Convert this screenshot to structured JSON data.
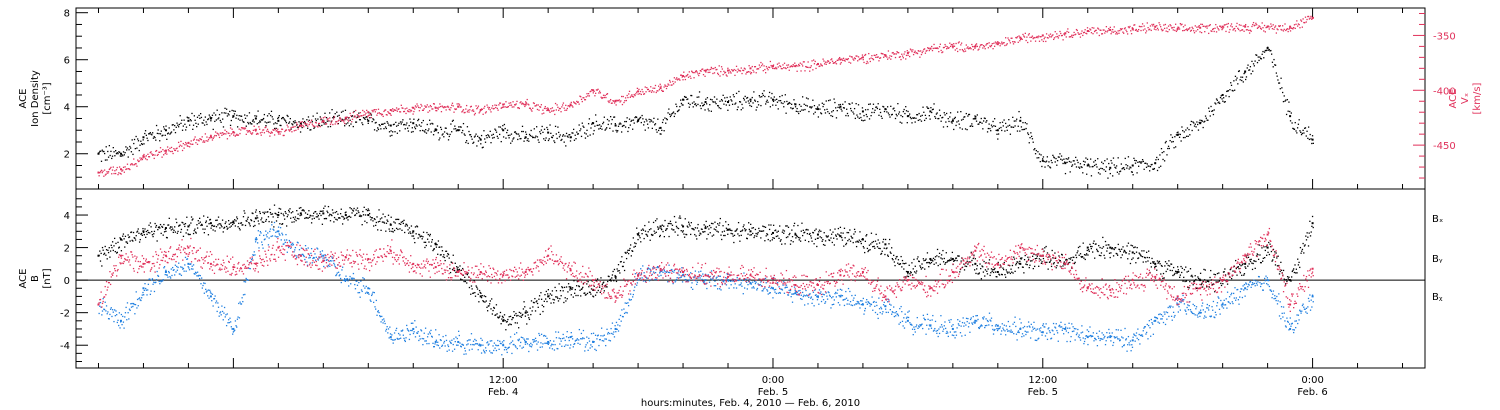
{
  "chart_data": [
    {
      "type": "scatter",
      "panel": "top",
      "ylabel": [
        "ACE",
        "Ion Density",
        "[cm⁻³]"
      ],
      "ylim": [
        0.5,
        8.2
      ],
      "yticks": [
        2,
        4,
        6,
        8
      ],
      "y2label": [
        "ACE",
        "Vₓ",
        "[km/s]"
      ],
      "y2lim": [
        -490,
        -325
      ],
      "y2ticks": [
        -450,
        -400,
        -350
      ],
      "x_unit": "hours since Feb. 4, 2010 00:00",
      "xlim": [
        -7,
        53
      ],
      "series": [
        {
          "name": "Ion Density",
          "color": "#000000",
          "axis": "left",
          "x": [
            -6,
            -5,
            -4,
            -3,
            -2,
            -1,
            0,
            1,
            2,
            3,
            4,
            5,
            6,
            7,
            8,
            9,
            10,
            11,
            12,
            13,
            14,
            15,
            16,
            17,
            18,
            19,
            20,
            21,
            22,
            23,
            24,
            25,
            26,
            27,
            28,
            29,
            30,
            31,
            32,
            33,
            34,
            35,
            36,
            37,
            38,
            39,
            40,
            41,
            42,
            43,
            44,
            45,
            46,
            47,
            48
          ],
          "y": [
            2.0,
            2.0,
            2.7,
            3.0,
            3.4,
            3.5,
            3.6,
            3.5,
            3.4,
            3.3,
            3.4,
            3.5,
            3.4,
            3.2,
            3.3,
            3.0,
            3.0,
            2.6,
            3.0,
            2.7,
            2.9,
            2.7,
            3.3,
            3.2,
            3.4,
            3.1,
            4.3,
            4.2,
            4.2,
            4.3,
            4.3,
            4.1,
            3.9,
            4.0,
            3.8,
            3.9,
            3.6,
            3.8,
            3.4,
            3.5,
            3.0,
            3.4,
            1.7,
            1.6,
            1.5,
            1.4,
            1.5,
            1.6,
            2.8,
            3.3,
            4.5,
            5.5,
            6.5,
            3.6,
            2.6
          ]
        },
        {
          "name": "Vₓ",
          "color": "#e0305a",
          "axis": "right",
          "x": [
            -6,
            -5,
            -4,
            -3,
            -2,
            -1,
            0,
            1,
            2,
            3,
            4,
            5,
            6,
            7,
            8,
            9,
            10,
            11,
            12,
            13,
            14,
            15,
            16,
            17,
            18,
            19,
            20,
            21,
            22,
            23,
            24,
            25,
            26,
            27,
            28,
            29,
            30,
            31,
            32,
            33,
            34,
            35,
            36,
            37,
            38,
            39,
            40,
            41,
            42,
            43,
            44,
            45,
            46,
            47,
            48
          ],
          "y": [
            -475,
            -472,
            -460,
            -455,
            -448,
            -442,
            -438,
            -436,
            -438,
            -432,
            -428,
            -425,
            -420,
            -418,
            -416,
            -416,
            -415,
            -418,
            -413,
            -413,
            -418,
            -413,
            -400,
            -410,
            -401,
            -398,
            -387,
            -382,
            -382,
            -380,
            -378,
            -378,
            -376,
            -372,
            -370,
            -368,
            -366,
            -362,
            -360,
            -360,
            -358,
            -352,
            -350,
            -348,
            -346,
            -345,
            -344,
            -342,
            -344,
            -343,
            -342,
            -342,
            -342,
            -342,
            -334
          ]
        }
      ]
    },
    {
      "type": "scatter",
      "panel": "bottom",
      "ylabel": [
        "ACE",
        "B",
        "[nT]"
      ],
      "ylim": [
        -5.4,
        5.6
      ],
      "yticks": [
        -4,
        -2,
        0,
        2,
        4
      ],
      "xlim": [
        -7,
        53
      ],
      "x_unit": "hours since Feb. 4, 2010 00:00",
      "zero_line": true,
      "xlabel": "hours:minutes, Feb.  4, 2010 — Feb.  6, 2010",
      "xticks": [
        {
          "x": 12,
          "time": "12:00",
          "date": "Feb. 4"
        },
        {
          "x": 24,
          "time": "0:00",
          "date": "Feb. 5"
        },
        {
          "x": 36,
          "time": "12:00",
          "date": "Feb. 5"
        },
        {
          "x": 48,
          "time": "0:00",
          "date": "Feb. 6"
        }
      ],
      "series": [
        {
          "name": "Bₓ",
          "color": "#000000",
          "x": [
            -6,
            -5,
            -4,
            -3,
            -2,
            -1,
            0,
            1,
            2,
            3,
            4,
            5,
            6,
            7,
            8,
            9,
            10,
            11,
            12,
            13,
            14,
            15,
            16,
            17,
            18,
            19,
            20,
            21,
            22,
            23,
            24,
            25,
            26,
            27,
            28,
            29,
            30,
            31,
            32,
            33,
            34,
            35,
            36,
            37,
            38,
            39,
            40,
            41,
            42,
            43,
            44,
            45,
            46,
            47,
            48
          ],
          "y": [
            1.5,
            2.5,
            3.0,
            3.2,
            3.3,
            3.5,
            3.6,
            3.8,
            4.0,
            4.1,
            4.1,
            4.0,
            4.0,
            3.4,
            3.0,
            2.2,
            0.6,
            -1.0,
            -2.5,
            -2.0,
            -1.0,
            -0.5,
            -0.6,
            0.2,
            2.8,
            3.3,
            3.3,
            3.2,
            3.1,
            3.0,
            2.9,
            2.8,
            2.8,
            2.7,
            2.5,
            2.2,
            0.5,
            1.3,
            1.3,
            1.0,
            0.5,
            1.0,
            1.5,
            1.0,
            2.0,
            2.0,
            1.7,
            1.0,
            0.5,
            0.0,
            0.0,
            1.0,
            2.0,
            0.0,
            3.5
          ]
        },
        {
          "name": "Bᵧ",
          "color": "#1f7fe0",
          "x": [
            -6,
            -5,
            -4,
            -3,
            -2,
            -1,
            0,
            1,
            2,
            3,
            4,
            5,
            6,
            7,
            8,
            9,
            10,
            11,
            12,
            13,
            14,
            15,
            16,
            17,
            18,
            19,
            20,
            21,
            22,
            23,
            24,
            25,
            26,
            27,
            28,
            29,
            30,
            31,
            32,
            33,
            34,
            35,
            36,
            37,
            38,
            39,
            40,
            41,
            42,
            43,
            44,
            45,
            46,
            47,
            48
          ],
          "y": [
            -1.5,
            -2.5,
            -0.5,
            0.5,
            1.0,
            -1.0,
            -3.0,
            2.5,
            3.0,
            1.5,
            1.5,
            0.0,
            -0.5,
            -3.5,
            -3.0,
            -3.8,
            -3.8,
            -4.0,
            -4.0,
            -3.8,
            -3.8,
            -3.5,
            -3.8,
            -3.0,
            0.3,
            0.6,
            0.3,
            0.0,
            0.0,
            -0.2,
            -0.5,
            -0.8,
            -1.0,
            -1.0,
            -1.5,
            -1.6,
            -2.5,
            -2.8,
            -3.0,
            -2.5,
            -2.8,
            -3.0,
            -3.2,
            -3.0,
            -3.5,
            -3.5,
            -3.7,
            -2.5,
            -1.5,
            -2.0,
            -1.5,
            -0.5,
            0.0,
            -3.0,
            -1.0
          ]
        },
        {
          "name": "Bᵪ",
          "color": "#e0305a",
          "x": [
            -6,
            -5,
            -4,
            -3,
            -2,
            -1,
            0,
            1,
            2,
            3,
            4,
            5,
            6,
            7,
            8,
            9,
            10,
            11,
            12,
            13,
            14,
            15,
            16,
            17,
            18,
            19,
            20,
            21,
            22,
            23,
            24,
            25,
            26,
            27,
            28,
            29,
            30,
            31,
            32,
            33,
            34,
            35,
            36,
            37,
            38,
            39,
            40,
            41,
            42,
            43,
            44,
            45,
            46,
            47,
            48
          ],
          "y": [
            -1.5,
            1.5,
            1.0,
            1.5,
            2.0,
            1.0,
            0.8,
            1.0,
            2.0,
            1.5,
            1.2,
            1.4,
            1.3,
            1.8,
            1.0,
            0.8,
            0.5,
            0.5,
            0.3,
            0.5,
            1.5,
            0.6,
            0.0,
            -1.0,
            0.3,
            0.6,
            0.5,
            0.3,
            0.2,
            0.3,
            0.1,
            -0.3,
            -0.3,
            0.3,
            0.5,
            -1.0,
            0.0,
            -0.5,
            0.5,
            1.8,
            1.0,
            2.0,
            1.5,
            1.0,
            -0.5,
            -0.6,
            0.0,
            0.2,
            -1.0,
            -0.5,
            0.0,
            1.5,
            2.8,
            -1.5,
            0.7
          ]
        }
      ]
    }
  ]
}
